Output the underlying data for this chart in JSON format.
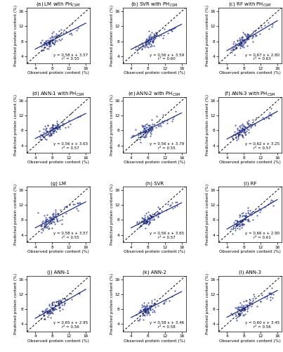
{
  "panels": [
    {
      "label": "(a) LM with PH$_{CSM}$",
      "eq": "y = 0.58 x + 3.57",
      "r2": "r² = 0.55",
      "slope": 0.58,
      "intercept": 3.57
    },
    {
      "label": "(b) SVR with PH$_{CSM}$",
      "eq": "y = 0.56 x + 3.59",
      "r2": "r² = 0.60",
      "slope": 0.56,
      "intercept": 3.59
    },
    {
      "label": "(c) RF with PH$_{CSM}$",
      "eq": "y = 0.67 x + 2.80",
      "r2": "r² = 0.63",
      "slope": 0.67,
      "intercept": 2.8
    },
    {
      "label": "(d) ANN-1 with PH$_{CSM}$",
      "eq": "y = 0.56 x + 3.63",
      "r2": "r² = 0.57",
      "slope": 0.56,
      "intercept": 3.63
    },
    {
      "label": "(e) ANN-2 with PH$_{CSM}$",
      "eq": "y = 0.56 x + 3.79",
      "r2": "r² = 0.55",
      "slope": 0.56,
      "intercept": 3.79
    },
    {
      "label": "(f) ANN-3 with PH$_{CSM}$",
      "eq": "y = 0.62 x + 3.25",
      "r2": "r² = 0.57",
      "slope": 0.62,
      "intercept": 3.25
    },
    {
      "label": "(g) LM",
      "eq": "y = 0.58 x + 3.57",
      "r2": "r² = 0.55",
      "slope": 0.58,
      "intercept": 3.57
    },
    {
      "label": "(h) SVR",
      "eq": "y = 0.56 x + 3.65",
      "r2": "r² = 0.57",
      "slope": 0.56,
      "intercept": 3.65
    },
    {
      "label": "(i) RF",
      "eq": "y = 0.66 x + 2.90",
      "r2": "r² = 0.61",
      "slope": 0.66,
      "intercept": 2.9
    },
    {
      "label": "(j) ANN-1",
      "eq": "y = 0.65 x + 2.95",
      "r2": "r² = 0.56",
      "slope": 0.65,
      "intercept": 2.95
    },
    {
      "label": "(k) ANN-2",
      "eq": "y = 0.58 x + 3.46",
      "r2": "r² = 0.58",
      "slope": 0.58,
      "intercept": 3.46
    },
    {
      "label": "(l) ANN-3",
      "eq": "y = 0.60 x + 3.45",
      "r2": "r² = 0.56",
      "slope": 0.6,
      "intercept": 3.45
    }
  ],
  "xlim": [
    2,
    17
  ],
  "ylim": [
    2,
    17
  ],
  "xticks": [
    4,
    8,
    12,
    16
  ],
  "yticks": [
    4,
    8,
    12,
    16
  ],
  "dot_color": "#1f2f8a",
  "line_color": "#1f3090",
  "scatter_alpha": 0.75,
  "scatter_size": 2.5,
  "xlabel": "Observed protein content (%)",
  "ylabel": "Predicted protein content (%)",
  "n_points": 90,
  "seed": 42
}
